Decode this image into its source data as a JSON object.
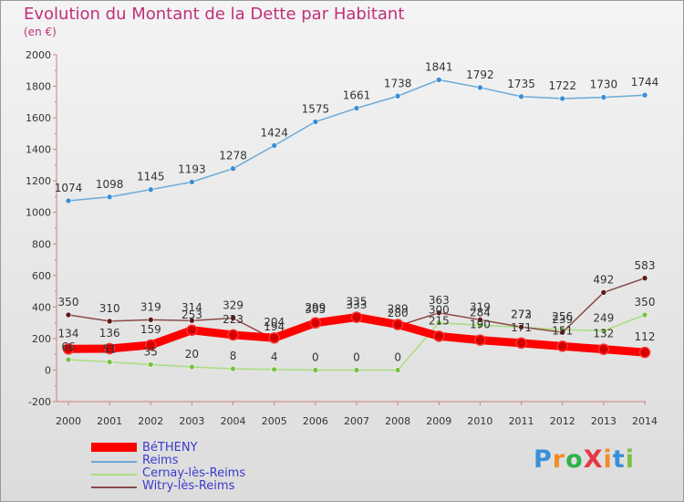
{
  "title": "Evolution du Montant de la Dette par Habitant",
  "subtitle": "(en €)",
  "logo": {
    "text": "ProXiti",
    "letter_colors": [
      "#3a8fd6",
      "#f28c28",
      "#2db34a",
      "#e63946",
      "#f28c28",
      "#3a8fd6",
      "#7ac143"
    ]
  },
  "chart_data": {
    "type": "line",
    "x": [
      "2000",
      "2001",
      "2002",
      "2003",
      "2004",
      "2005",
      "2006",
      "2007",
      "2008",
      "2009",
      "2010",
      "2011",
      "2012",
      "2013",
      "2014"
    ],
    "ylim": [
      -200,
      2000
    ],
    "yticks": [
      "-200",
      "0",
      "200",
      "400",
      "600",
      "800",
      "1000",
      "1200",
      "1400",
      "1600",
      "1800",
      "2000"
    ],
    "grid": false,
    "legend_position": "bottom-left",
    "series": [
      {
        "name": "BéTHENY",
        "color": "#ff0000",
        "marker_color": "#d40000",
        "values": [
          134,
          136,
          159,
          253,
          223,
          204,
          299,
          335,
          289,
          215,
          190,
          171,
          151,
          132,
          112
        ],
        "labels": [
          "134",
          "136",
          "159",
          "253",
          "223",
          "204",
          "299",
          "335",
          "289",
          "215",
          "190",
          "171",
          "151",
          "132",
          "112"
        ]
      },
      {
        "name": "Reims",
        "color": "#6aaad8",
        "marker_color": "#3a8fd6",
        "values": [
          1074,
          1098,
          1145,
          1193,
          1278,
          1424,
          1575,
          1661,
          1738,
          1841,
          1792,
          1735,
          1722,
          1730,
          1744
        ],
        "labels": [
          "1074",
          "1098",
          "1145",
          "1193",
          "1278",
          "1424",
          "1575",
          "1661",
          "1738",
          "1841",
          "1792",
          "1735",
          "1722",
          "1730",
          "1744"
        ]
      },
      {
        "name": "Cernay-lès-Reims",
        "color": "#a8dd7e",
        "marker_color": "#7ac143",
        "values": [
          66,
          51,
          35,
          20,
          8,
          4,
          0,
          0,
          0,
          300,
          284,
          272,
          256,
          249,
          350
        ],
        "labels": [
          "66",
          "51",
          "35",
          "20",
          "8",
          "4",
          "0",
          "0",
          "0",
          "300",
          "284",
          "272",
          "256",
          "249",
          "350"
        ]
      },
      {
        "name": "Witry-lès-Reims",
        "color": "#8b4a4a",
        "marker_color": "#5a1a1a",
        "values": [
          350,
          310,
          319,
          314,
          329,
          194,
          305,
          333,
          280,
          363,
          319,
          273,
          239,
          492,
          583
        ],
        "labels": [
          "350",
          "310",
          "319",
          "314",
          "329",
          "194",
          "305",
          "333",
          "280",
          "363",
          "319",
          "273",
          "239",
          "492",
          "583"
        ]
      }
    ]
  }
}
